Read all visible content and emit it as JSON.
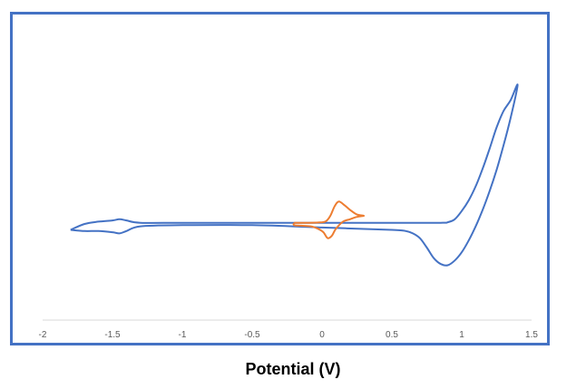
{
  "chart_data": {
    "type": "line",
    "title": "",
    "xlabel": "Potential (V)",
    "ylabel": "",
    "xlim": [
      -2,
      1.5
    ],
    "ylim": [
      -1,
      1
    ],
    "x_ticks": [
      "-2",
      "-1.5",
      "-1",
      "-0.5",
      "0",
      "0.5",
      "1",
      "1.5"
    ],
    "grid": false,
    "legend": "none",
    "series": [
      {
        "color": "#4472c4",
        "points": [
          [
            -1.8,
            -0.05
          ],
          [
            -1.7,
            0.0
          ],
          [
            -1.6,
            0.02
          ],
          [
            -1.5,
            0.03
          ],
          [
            -1.45,
            0.04
          ],
          [
            -1.4,
            0.03
          ],
          [
            -1.3,
            0.01
          ],
          [
            -1.0,
            0.01
          ],
          [
            -0.5,
            0.01
          ],
          [
            0.0,
            0.01
          ],
          [
            0.5,
            0.01
          ],
          [
            0.85,
            0.01
          ],
          [
            0.9,
            0.015
          ],
          [
            0.95,
            0.04
          ],
          [
            1.0,
            0.11
          ],
          [
            1.05,
            0.2
          ],
          [
            1.1,
            0.32
          ],
          [
            1.15,
            0.47
          ],
          [
            1.2,
            0.64
          ],
          [
            1.25,
            0.82
          ],
          [
            1.3,
            0.96
          ],
          [
            1.35,
            1.05
          ],
          [
            1.4,
            1.18
          ],
          [
            1.35,
            0.9
          ],
          [
            1.3,
            0.67
          ],
          [
            1.25,
            0.46
          ],
          [
            1.2,
            0.28
          ],
          [
            1.15,
            0.12
          ],
          [
            1.1,
            -0.02
          ],
          [
            1.05,
            -0.14
          ],
          [
            1.0,
            -0.24
          ],
          [
            0.95,
            -0.31
          ],
          [
            0.9,
            -0.35
          ],
          [
            0.85,
            -0.34
          ],
          [
            0.8,
            -0.29
          ],
          [
            0.75,
            -0.2
          ],
          [
            0.7,
            -0.12
          ],
          [
            0.65,
            -0.08
          ],
          [
            0.6,
            -0.06
          ],
          [
            0.5,
            -0.05
          ],
          [
            0.0,
            -0.03
          ],
          [
            -0.5,
            -0.01
          ],
          [
            -1.0,
            -0.01
          ],
          [
            -1.3,
            -0.02
          ],
          [
            -1.4,
            -0.06
          ],
          [
            -1.45,
            -0.08
          ],
          [
            -1.5,
            -0.07
          ],
          [
            -1.6,
            -0.06
          ],
          [
            -1.7,
            -0.06
          ],
          [
            -1.8,
            -0.05
          ]
        ]
      },
      {
        "color": "#ed7d31",
        "points": [
          [
            -0.2,
            0.01
          ],
          [
            -0.1,
            0.01
          ],
          [
            0.0,
            0.015
          ],
          [
            0.03,
            0.025
          ],
          [
            0.06,
            0.07
          ],
          [
            0.09,
            0.15
          ],
          [
            0.12,
            0.19
          ],
          [
            0.16,
            0.16
          ],
          [
            0.2,
            0.12
          ],
          [
            0.25,
            0.08
          ],
          [
            0.3,
            0.07
          ],
          [
            0.25,
            0.06
          ],
          [
            0.2,
            0.04
          ],
          [
            0.15,
            0.02
          ],
          [
            0.1,
            -0.04
          ],
          [
            0.07,
            -0.1
          ],
          [
            0.04,
            -0.12
          ],
          [
            0.01,
            -0.07
          ],
          [
            -0.03,
            -0.04
          ],
          [
            -0.08,
            -0.02
          ],
          [
            -0.15,
            -0.015
          ],
          [
            -0.2,
            -0.01
          ],
          [
            -0.2,
            0.01
          ]
        ]
      }
    ]
  }
}
